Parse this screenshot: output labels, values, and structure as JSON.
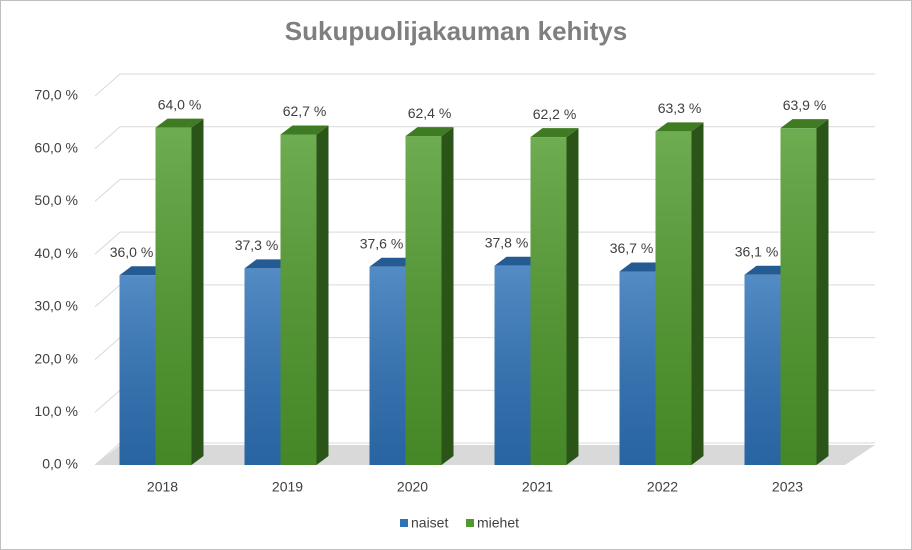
{
  "chart_data": {
    "type": "bar3d",
    "title": "Sukupuolijakauman kehitys",
    "categories": [
      "2018",
      "2019",
      "2020",
      "2021",
      "2022",
      "2023"
    ],
    "series": [
      {
        "name": "naiset",
        "color": "#2e72b8",
        "values": [
          36.0,
          37.3,
          37.6,
          37.8,
          36.7,
          36.1
        ],
        "value_labels": [
          "36,0 %",
          "37,3 %",
          "37,6 %",
          "37,8 %",
          "36,7 %",
          "36,1 %"
        ]
      },
      {
        "name": "miehet",
        "color": "#4f9a2c",
        "values": [
          64.0,
          62.7,
          62.4,
          62.2,
          63.3,
          63.9
        ],
        "value_labels": [
          "64,0 %",
          "62,7 %",
          "62,4 %",
          "62,2 %",
          "63,3 %",
          "63,9 %"
        ]
      }
    ],
    "ylim": [
      0,
      70
    ],
    "yticks": [
      {
        "value": 0,
        "label": "0,0 %"
      },
      {
        "value": 10,
        "label": "10,0 %"
      },
      {
        "value": 20,
        "label": "20,0 %"
      },
      {
        "value": 30,
        "label": "30,0 %"
      },
      {
        "value": 40,
        "label": "40,0 %"
      },
      {
        "value": 50,
        "label": "50,0 %"
      },
      {
        "value": 60,
        "label": "60,0 %"
      },
      {
        "value": 70,
        "label": "70,0 %"
      }
    ],
    "grid": true,
    "legend": "bottom"
  }
}
